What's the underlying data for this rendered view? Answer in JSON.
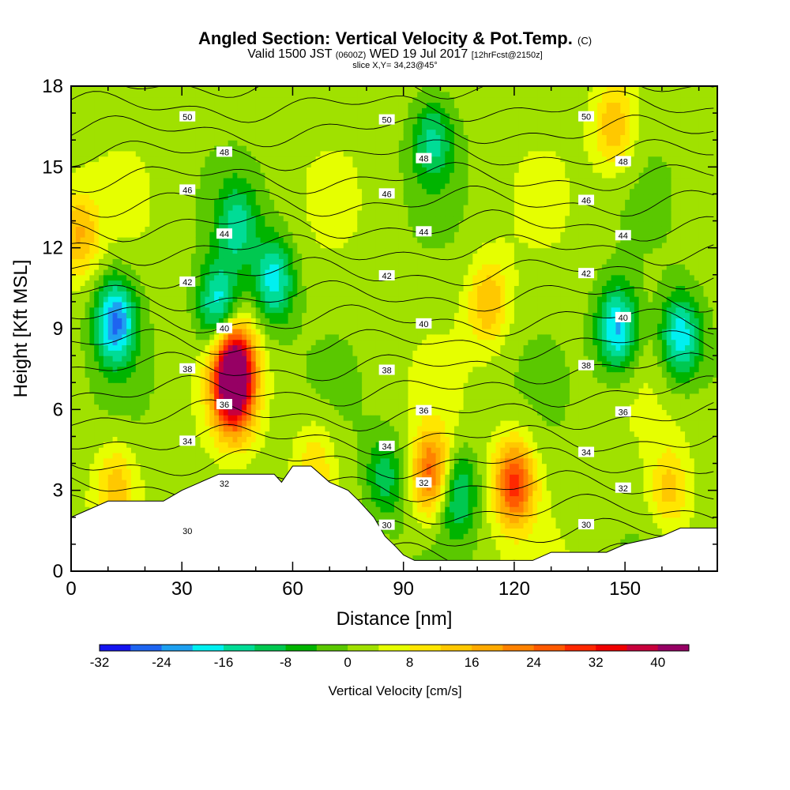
{
  "title": {
    "main": "Angled Section: Vertical Velocity & Pot.Temp.",
    "unit": "(C)",
    "valid_prefix": "Valid 1500 JST",
    "zulu": "(0600Z)",
    "date": "WED 19 Jul 2017",
    "forecast": "[12hrFcst@2150z]",
    "slice": "slice X,Y= 34,23@45°"
  },
  "chart_data": {
    "type": "heatmap",
    "xlabel": "Distance [nm]",
    "ylabel": "Height [Kft MSL]",
    "xlim": [
      0,
      175
    ],
    "ylim": [
      0,
      18
    ],
    "x_ticks": [
      0,
      30,
      60,
      90,
      120,
      150
    ],
    "y_ticks": [
      0,
      3,
      6,
      9,
      12,
      15,
      18
    ],
    "colorbar": {
      "label": "Vertical Velocity [cm/s]",
      "tick_labels": [
        "-32",
        "-24",
        "-16",
        "-8",
        "0",
        "8",
        "16",
        "24",
        "32",
        "40"
      ],
      "bounds": [
        -32,
        -28,
        -24,
        -20,
        -16,
        -12,
        -8,
        -4,
        0,
        4,
        8,
        12,
        16,
        20,
        24,
        28,
        32,
        36,
        40,
        44
      ],
      "colors": [
        "#1414f0",
        "#1e64f0",
        "#1ea0f0",
        "#00f0f0",
        "#00dc96",
        "#00c850",
        "#00b400",
        "#5ac800",
        "#a0e100",
        "#e6ff00",
        "#ffe600",
        "#ffc800",
        "#ffaa00",
        "#ff8200",
        "#ff5a00",
        "#ff2800",
        "#f00000",
        "#c8003c",
        "#960064"
      ]
    },
    "theta_contour_labels": [
      "30",
      "32",
      "34",
      "36",
      "38",
      "40",
      "42",
      "44",
      "46",
      "48",
      "50"
    ],
    "terrain_profile": [
      [
        0,
        2.0
      ],
      [
        5,
        2.3
      ],
      [
        10,
        2.6
      ],
      [
        25,
        2.6
      ],
      [
        30,
        3.0
      ],
      [
        35,
        3.3
      ],
      [
        40,
        3.6
      ],
      [
        55,
        3.6
      ],
      [
        57,
        3.3
      ],
      [
        60,
        3.9
      ],
      [
        65,
        3.9
      ],
      [
        70,
        3.3
      ],
      [
        75,
        3.0
      ],
      [
        78,
        2.6
      ],
      [
        82,
        2.0
      ],
      [
        85,
        1.3
      ],
      [
        88,
        0.9
      ],
      [
        90,
        0.6
      ],
      [
        93,
        0.4
      ],
      [
        125,
        0.4
      ],
      [
        130,
        0.7
      ],
      [
        145,
        0.7
      ],
      [
        150,
        1.0
      ],
      [
        160,
        1.3
      ],
      [
        165,
        1.6
      ],
      [
        175,
        1.6
      ]
    ],
    "vertical_velocity_cells": [
      {
        "x": 44,
        "y": 7.8,
        "value": 36
      },
      {
        "x": 44,
        "y": 6.5,
        "value": 30
      },
      {
        "x": 98,
        "y": 3.6,
        "value": 26
      },
      {
        "x": 120,
        "y": 3.3,
        "value": 28
      },
      {
        "x": 113,
        "y": 10.0,
        "value": 14
      },
      {
        "x": 147,
        "y": 16.5,
        "value": 14
      },
      {
        "x": 2,
        "y": 12.5,
        "value": 14
      },
      {
        "x": 12,
        "y": 3.2,
        "value": 12
      },
      {
        "x": 66,
        "y": 4.0,
        "value": 10
      },
      {
        "x": 162,
        "y": 3.0,
        "value": 12
      },
      {
        "x": 12,
        "y": 9.3,
        "value": -26
      },
      {
        "x": 40,
        "y": 9.8,
        "value": -22
      },
      {
        "x": 55,
        "y": 10.8,
        "value": -20
      },
      {
        "x": 148,
        "y": 9.0,
        "value": -24
      },
      {
        "x": 165,
        "y": 8.7,
        "value": -22
      },
      {
        "x": 98,
        "y": 16.0,
        "value": -14
      },
      {
        "x": 104,
        "y": 3.0,
        "value": -18
      },
      {
        "x": 45,
        "y": 12.8,
        "value": -14
      },
      {
        "x": 85,
        "y": 3.5,
        "value": -12
      }
    ]
  }
}
